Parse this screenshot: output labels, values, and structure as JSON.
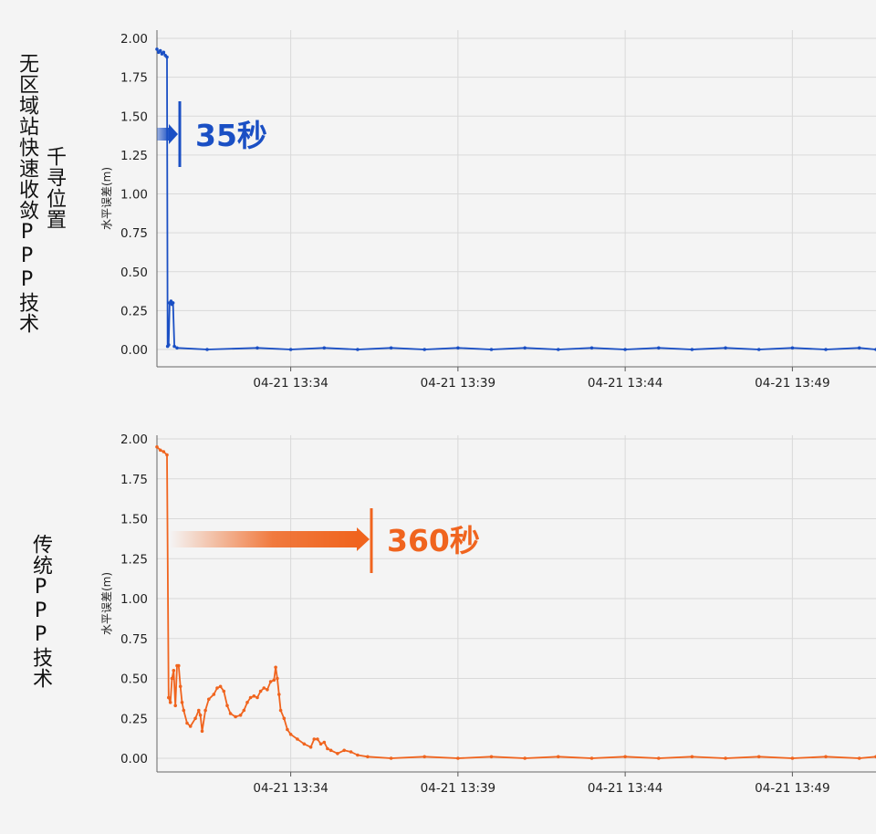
{
  "labels": {
    "top_method_a": "千寻位置",
    "top_method_b": "无区域站快速收敛PPP技术",
    "bottom_method": "传统PPP技术"
  },
  "colors": {
    "blue": "#1a4fc4",
    "orange": "#f0641e",
    "grid": "#d9d9d9"
  },
  "chart_data": [
    {
      "type": "line",
      "ylabel": "水平误差(m)",
      "ylim": [
        0.0,
        2.0
      ],
      "yticks": [
        "0.00",
        "0.25",
        "0.50",
        "0.75",
        "1.00",
        "1.25",
        "1.50",
        "1.75",
        "2.00"
      ],
      "xticks": [
        "04-21 13:34",
        "04-21 13:39",
        "04-21 13:44",
        "04-21 13:49"
      ],
      "x_unit": "minutes after 13:30",
      "xlim": [
        0.0,
        21.5
      ],
      "annotation": {
        "text": "35秒",
        "marker_x_min": 0.68
      },
      "series": [
        {
          "color": "#1a4fc4",
          "points": [
            [
              0.0,
              1.93
            ],
            [
              0.05,
              1.91
            ],
            [
              0.1,
              1.92
            ],
            [
              0.15,
              1.9
            ],
            [
              0.2,
              1.91
            ],
            [
              0.25,
              1.89
            ],
            [
              0.3,
              1.88
            ],
            [
              0.32,
              0.02
            ],
            [
              0.35,
              0.03
            ],
            [
              0.38,
              0.3
            ],
            [
              0.42,
              0.31
            ],
            [
              0.45,
              0.29
            ],
            [
              0.48,
              0.3
            ],
            [
              0.52,
              0.02
            ],
            [
              0.6,
              0.01
            ],
            [
              1.5,
              0.0
            ],
            [
              3,
              0.01
            ],
            [
              4,
              0.0
            ],
            [
              5,
              0.01
            ],
            [
              6,
              0.0
            ],
            [
              7,
              0.01
            ],
            [
              8,
              0.0
            ],
            [
              9,
              0.01
            ],
            [
              10,
              0.0
            ],
            [
              11,
              0.01
            ],
            [
              12,
              0.0
            ],
            [
              13,
              0.01
            ],
            [
              14,
              0.0
            ],
            [
              15,
              0.01
            ],
            [
              16,
              0.0
            ],
            [
              17,
              0.01
            ],
            [
              18,
              0.0
            ],
            [
              19,
              0.01
            ],
            [
              20,
              0.0
            ],
            [
              21,
              0.01
            ],
            [
              21.5,
              0.0
            ]
          ]
        }
      ]
    },
    {
      "type": "line",
      "ylabel": "水平误差(m)",
      "ylim": [
        0.0,
        2.0
      ],
      "yticks": [
        "0.00",
        "0.25",
        "0.50",
        "0.75",
        "1.00",
        "1.25",
        "1.50",
        "1.75",
        "2.00"
      ],
      "xticks": [
        "04-21 13:34",
        "04-21 13:39",
        "04-21 13:44",
        "04-21 13:49"
      ],
      "x_unit": "minutes after 13:30",
      "xlim": [
        0.0,
        21.5
      ],
      "annotation": {
        "text": "360秒",
        "marker_x_min": 6.35
      },
      "series": [
        {
          "color": "#f0641e",
          "points": [
            [
              0.0,
              1.95
            ],
            [
              0.1,
              1.93
            ],
            [
              0.2,
              1.92
            ],
            [
              0.3,
              1.9
            ],
            [
              0.35,
              0.38
            ],
            [
              0.4,
              0.35
            ],
            [
              0.45,
              0.5
            ],
            [
              0.5,
              0.55
            ],
            [
              0.55,
              0.33
            ],
            [
              0.6,
              0.58
            ],
            [
              0.65,
              0.58
            ],
            [
              0.7,
              0.45
            ],
            [
              0.75,
              0.35
            ],
            [
              0.8,
              0.3
            ],
            [
              0.9,
              0.22
            ],
            [
              1.0,
              0.2
            ],
            [
              1.15,
              0.25
            ],
            [
              1.25,
              0.3
            ],
            [
              1.3,
              0.27
            ],
            [
              1.35,
              0.17
            ],
            [
              1.45,
              0.3
            ],
            [
              1.55,
              0.37
            ],
            [
              1.7,
              0.4
            ],
            [
              1.8,
              0.44
            ],
            [
              1.9,
              0.45
            ],
            [
              2.0,
              0.42
            ],
            [
              2.1,
              0.33
            ],
            [
              2.2,
              0.28
            ],
            [
              2.35,
              0.26
            ],
            [
              2.5,
              0.27
            ],
            [
              2.6,
              0.3
            ],
            [
              2.7,
              0.35
            ],
            [
              2.8,
              0.38
            ],
            [
              2.9,
              0.39
            ],
            [
              3.0,
              0.38
            ],
            [
              3.1,
              0.42
            ],
            [
              3.2,
              0.44
            ],
            [
              3.3,
              0.43
            ],
            [
              3.4,
              0.48
            ],
            [
              3.5,
              0.49
            ],
            [
              3.55,
              0.57
            ],
            [
              3.6,
              0.5
            ],
            [
              3.65,
              0.4
            ],
            [
              3.7,
              0.3
            ],
            [
              3.8,
              0.25
            ],
            [
              3.9,
              0.18
            ],
            [
              4.0,
              0.15
            ],
            [
              4.2,
              0.12
            ],
            [
              4.4,
              0.09
            ],
            [
              4.6,
              0.07
            ],
            [
              4.7,
              0.12
            ],
            [
              4.8,
              0.12
            ],
            [
              4.9,
              0.09
            ],
            [
              5.0,
              0.1
            ],
            [
              5.1,
              0.06
            ],
            [
              5.2,
              0.05
            ],
            [
              5.4,
              0.03
            ],
            [
              5.6,
              0.05
            ],
            [
              5.8,
              0.04
            ],
            [
              6.0,
              0.02
            ],
            [
              6.3,
              0.01
            ],
            [
              7,
              0.0
            ],
            [
              8,
              0.01
            ],
            [
              9,
              0.0
            ],
            [
              10,
              0.01
            ],
            [
              11,
              0.0
            ],
            [
              12,
              0.01
            ],
            [
              13,
              0.0
            ],
            [
              14,
              0.01
            ],
            [
              15,
              0.0
            ],
            [
              16,
              0.01
            ],
            [
              17,
              0.0
            ],
            [
              18,
              0.01
            ],
            [
              19,
              0.0
            ],
            [
              20,
              0.01
            ],
            [
              21,
              0.0
            ],
            [
              21.5,
              0.01
            ]
          ]
        }
      ]
    }
  ]
}
